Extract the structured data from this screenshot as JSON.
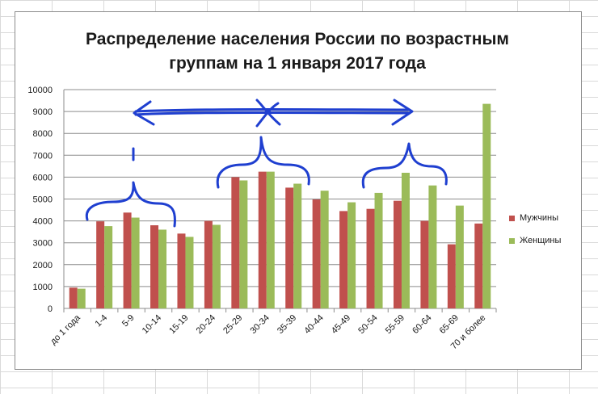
{
  "chart_data": {
    "type": "bar",
    "title_line1": "Распределение населения России по возрастным",
    "title_line2": "группам на 1 января 2017 года",
    "categories": [
      "до 1 года",
      "1-4",
      "5-9",
      "10-14",
      "15-19",
      "20-24",
      "25-29",
      "30-34",
      "35-39",
      "40-44",
      "45-49",
      "50-54",
      "55-59",
      "60-64",
      "65-69",
      "70 и более"
    ],
    "series": [
      {
        "name": "Мужчины",
        "color": "#c0504d",
        "values": [
          950,
          3980,
          4380,
          3800,
          3420,
          4000,
          6000,
          6250,
          5520,
          4980,
          4450,
          4550,
          4920,
          4000,
          2930,
          3880
        ]
      },
      {
        "name": "Женщины",
        "color": "#9bbb59",
        "values": [
          900,
          3760,
          4150,
          3600,
          3270,
          3820,
          5850,
          6250,
          5700,
          5380,
          4850,
          5280,
          6200,
          5620,
          4700,
          9350
        ]
      }
    ],
    "ylim": [
      0,
      10000
    ],
    "yticks": [
      "0",
      "1000",
      "2000",
      "3000",
      "4000",
      "5000",
      "6000",
      "7000",
      "8000",
      "9000",
      "10000"
    ],
    "grid": true,
    "legend_position": "right",
    "annotation_color": "#1f3fd0"
  }
}
